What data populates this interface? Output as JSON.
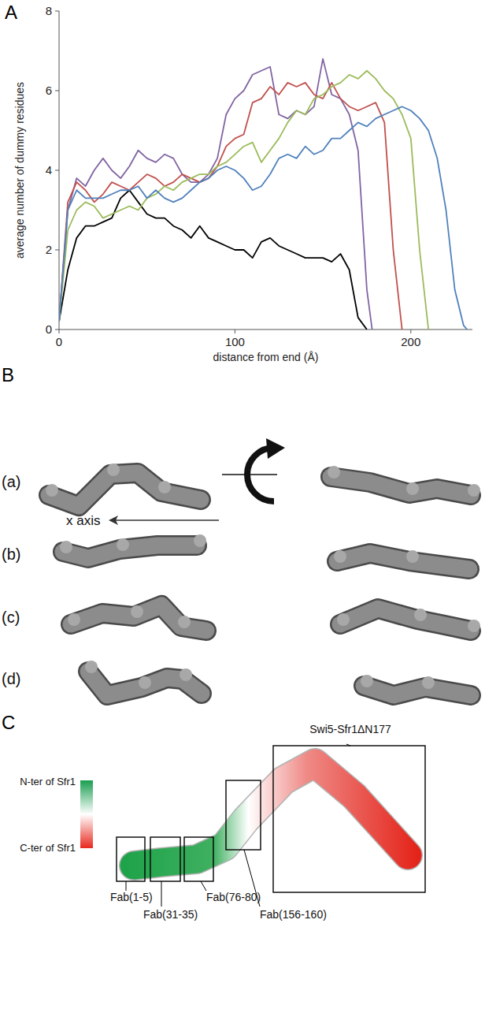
{
  "panel_labels": [
    "A",
    "B",
    "C"
  ],
  "chart_data": {
    "type": "line",
    "x_label": "distance from end (Å)",
    "y_label": "average number of dummy residues",
    "xlim": [
      0,
      235
    ],
    "ylim": [
      0,
      8
    ],
    "xticks": [
      0,
      100,
      200
    ],
    "yticks": [
      0,
      2,
      4,
      6,
      8
    ],
    "grid": false,
    "series": [
      {
        "color": "#000000",
        "x": [
          0,
          5,
          10,
          15,
          20,
          25,
          30,
          35,
          40,
          45,
          50,
          55,
          60,
          65,
          70,
          75,
          80,
          85,
          90,
          95,
          100,
          105,
          110,
          115,
          120,
          125,
          130,
          135,
          140,
          145,
          150,
          155,
          160,
          165,
          170,
          175
        ],
        "values": [
          0.2,
          1.5,
          2.3,
          2.6,
          2.6,
          2.7,
          2.8,
          3.3,
          3.5,
          3.2,
          2.9,
          2.8,
          2.8,
          2.6,
          2.5,
          2.3,
          2.6,
          2.3,
          2.2,
          2.1,
          2.0,
          2.0,
          1.8,
          2.2,
          2.3,
          2.1,
          2.0,
          1.9,
          1.8,
          1.8,
          1.8,
          1.7,
          1.9,
          1.5,
          0.3,
          0
        ]
      },
      {
        "color": "#8064a2",
        "x": [
          0,
          5,
          10,
          15,
          20,
          25,
          30,
          35,
          40,
          45,
          50,
          55,
          60,
          65,
          70,
          75,
          80,
          85,
          90,
          95,
          100,
          105,
          110,
          115,
          120,
          125,
          130,
          135,
          140,
          145,
          150,
          155,
          160,
          165,
          170,
          175,
          178
        ],
        "values": [
          0.2,
          3.0,
          3.8,
          3.6,
          4.0,
          4.3,
          4.0,
          3.8,
          4.1,
          4.5,
          4.3,
          4.2,
          4.4,
          4.3,
          3.9,
          3.7,
          3.7,
          3.9,
          4.3,
          5.4,
          5.8,
          6.0,
          6.4,
          6.5,
          6.6,
          5.4,
          5.3,
          5.5,
          5.4,
          5.6,
          6.8,
          5.9,
          5.8,
          5.4,
          4.5,
          1.0,
          0
        ]
      },
      {
        "color": "#c0504d",
        "x": [
          0,
          5,
          10,
          15,
          20,
          25,
          30,
          35,
          40,
          45,
          50,
          55,
          60,
          65,
          70,
          75,
          80,
          85,
          90,
          95,
          100,
          105,
          110,
          115,
          120,
          125,
          130,
          135,
          140,
          145,
          150,
          155,
          160,
          165,
          170,
          175,
          180,
          185,
          190,
          195
        ],
        "values": [
          0.2,
          3.2,
          3.7,
          3.5,
          3.2,
          3.4,
          3.7,
          3.6,
          3.5,
          3.7,
          3.9,
          3.8,
          3.6,
          3.7,
          3.9,
          3.8,
          3.7,
          3.8,
          4.1,
          4.6,
          4.8,
          4.9,
          5.7,
          5.8,
          6.1,
          5.9,
          6.2,
          6.1,
          6.2,
          5.9,
          5.8,
          6.2,
          5.8,
          5.6,
          5.5,
          5.6,
          5.7,
          5.2,
          2.0,
          0
        ]
      },
      {
        "color": "#9bbb59",
        "x": [
          0,
          5,
          10,
          15,
          20,
          25,
          30,
          35,
          40,
          45,
          50,
          55,
          60,
          65,
          70,
          75,
          80,
          85,
          90,
          95,
          100,
          105,
          110,
          115,
          120,
          125,
          130,
          135,
          140,
          145,
          150,
          155,
          160,
          165,
          170,
          175,
          180,
          185,
          190,
          195,
          200,
          205,
          210
        ],
        "values": [
          0.2,
          2.5,
          3.0,
          3.2,
          3.1,
          2.8,
          2.9,
          3.0,
          3.1,
          3.0,
          3.3,
          3.4,
          3.6,
          3.5,
          3.7,
          3.8,
          3.9,
          3.9,
          4.1,
          4.2,
          4.4,
          4.6,
          4.7,
          4.2,
          4.5,
          4.8,
          5.2,
          5.5,
          5.4,
          5.8,
          5.9,
          6.1,
          6.2,
          6.4,
          6.3,
          6.5,
          6.3,
          6.0,
          5.8,
          5.4,
          4.8,
          2.0,
          0
        ]
      },
      {
        "color": "#4f81bd",
        "x": [
          0,
          5,
          10,
          15,
          20,
          25,
          30,
          35,
          40,
          45,
          50,
          55,
          60,
          65,
          70,
          75,
          80,
          85,
          90,
          95,
          100,
          105,
          110,
          115,
          120,
          125,
          130,
          135,
          140,
          145,
          150,
          155,
          160,
          165,
          170,
          175,
          180,
          185,
          190,
          195,
          200,
          205,
          210,
          215,
          220,
          225,
          230,
          232
        ],
        "values": [
          0.2,
          3.0,
          3.5,
          3.3,
          3.3,
          3.3,
          3.4,
          3.5,
          3.5,
          3.6,
          3.3,
          3.5,
          3.3,
          3.2,
          3.3,
          3.5,
          3.7,
          3.8,
          4.0,
          4.1,
          4.0,
          3.8,
          3.5,
          3.6,
          3.9,
          4.3,
          4.4,
          4.3,
          4.6,
          4.4,
          4.5,
          4.8,
          4.8,
          5.0,
          5.2,
          5.1,
          5.3,
          5.4,
          5.5,
          5.6,
          5.5,
          5.3,
          5.0,
          4.3,
          3.0,
          1.0,
          0.1,
          0
        ]
      }
    ]
  },
  "panel_b": {
    "rows": [
      "(a)",
      "(b)",
      "(c)",
      "(d)"
    ],
    "axis_label": "x axis"
  },
  "panel_c": {
    "scale_top": "N-ter of Sfr1",
    "scale_bottom": "C-ter of Sfr1",
    "regions": [
      "Swi5-Sfr1ΔN177",
      "Fab(1-5)",
      "Fab(31-35)",
      "Fab(76-80)",
      "Fab(156-160)"
    ]
  }
}
